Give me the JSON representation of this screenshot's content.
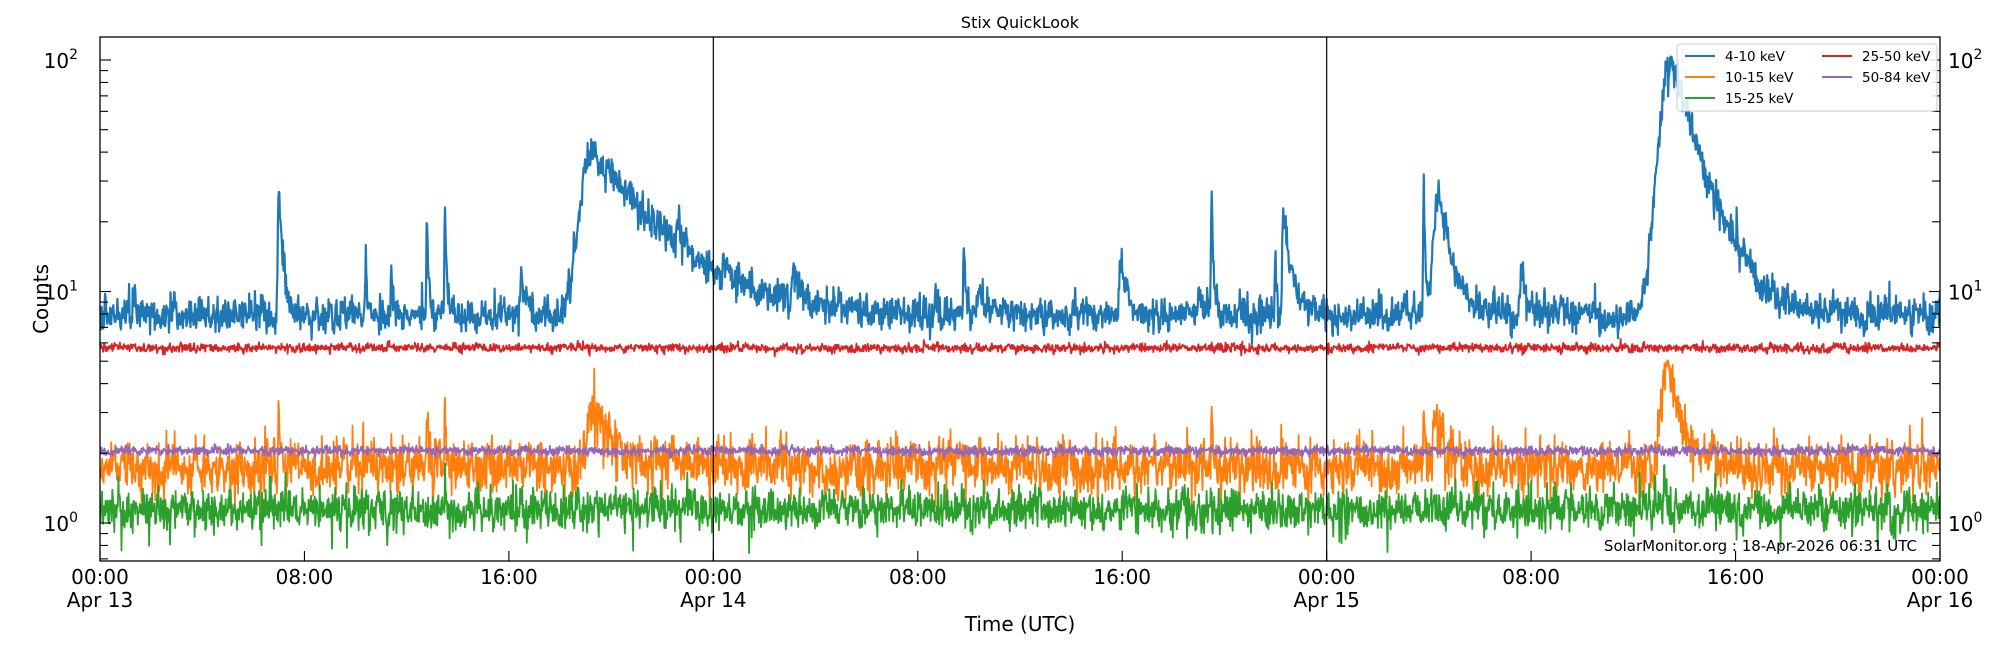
{
  "chart_data": {
    "type": "line",
    "title": "Stix QuickLook",
    "xlabel": "Time (UTC)",
    "ylabel": "Counts",
    "yscale": "log",
    "ylim": [
      0.686,
      125
    ],
    "xlim_hours": [
      0,
      72
    ],
    "grid": false,
    "legend_position": "upper right",
    "annotation": "SolarMonitor.org : 18-Apr-2026 06:31 UTC",
    "x_ticks": [
      {
        "hour": 0,
        "time": "00:00",
        "date": "Apr 13"
      },
      {
        "hour": 8,
        "time": "08:00",
        "date": ""
      },
      {
        "hour": 16,
        "time": "16:00",
        "date": ""
      },
      {
        "hour": 24,
        "time": "00:00",
        "date": "Apr 14"
      },
      {
        "hour": 32,
        "time": "08:00",
        "date": ""
      },
      {
        "hour": 40,
        "time": "16:00",
        "date": ""
      },
      {
        "hour": 48,
        "time": "00:00",
        "date": "Apr 15"
      },
      {
        "hour": 56,
        "time": "08:00",
        "date": ""
      },
      {
        "hour": 64,
        "time": "16:00",
        "date": ""
      },
      {
        "hour": 72,
        "time": "00:00",
        "date": "Apr 16"
      }
    ],
    "day_separators_hours": [
      24,
      48
    ],
    "y_ticks": [
      {
        "value": 1,
        "label": "10",
        "exp": "0"
      },
      {
        "value": 10,
        "label": "10",
        "exp": "1"
      },
      {
        "value": 100,
        "label": "10",
        "exp": "2"
      }
    ],
    "series": [
      {
        "name": "4-10 keV",
        "color": "#1f77b4",
        "baseline": 7.9,
        "noise": 0.045,
        "peaks": [
          {
            "hour": 1.3,
            "value": 9.4,
            "rise": 0.05,
            "decay": 0.1
          },
          {
            "hour": 2.8,
            "value": 9.3,
            "rise": 0.05,
            "decay": 0.1
          },
          {
            "hour": 7.0,
            "value": 26,
            "rise": 0.05,
            "decay": 0.15
          },
          {
            "hour": 10.4,
            "value": 15.5,
            "rise": 0.03,
            "decay": 0.05
          },
          {
            "hour": 11.4,
            "value": 12,
            "rise": 0.03,
            "decay": 0.06
          },
          {
            "hour": 12.8,
            "value": 22,
            "rise": 0.03,
            "decay": 0.06
          },
          {
            "hour": 13.5,
            "value": 23,
            "rise": 0.03,
            "decay": 0.05
          },
          {
            "hour": 16.5,
            "value": 12.5,
            "rise": 0.05,
            "decay": 0.15
          },
          {
            "hour": 19.3,
            "value": 40,
            "rise": 0.6,
            "decay": 2.4
          },
          {
            "hour": 22.6,
            "value": 12.5,
            "rise": 0.05,
            "decay": 0.2
          },
          {
            "hour": 24.4,
            "value": 10.5,
            "rise": 0.05,
            "decay": 0.3
          },
          {
            "hour": 27.1,
            "value": 10.8,
            "rise": 0.05,
            "decay": 0.4
          },
          {
            "hour": 32.7,
            "value": 10.5,
            "rise": 0.03,
            "decay": 0.05
          },
          {
            "hour": 33.8,
            "value": 17,
            "rise": 0.03,
            "decay": 0.06
          },
          {
            "hour": 34.4,
            "value": 10.2,
            "rise": 0.1,
            "decay": 0.3
          },
          {
            "hour": 39.9,
            "value": 12.5,
            "rise": 0.05,
            "decay": 0.3
          },
          {
            "hour": 43.0,
            "value": 10.0,
            "rise": 0.1,
            "decay": 0.2
          },
          {
            "hour": 43.5,
            "value": 26,
            "rise": 0.03,
            "decay": 0.06
          },
          {
            "hour": 46.0,
            "value": 13,
            "rise": 0.03,
            "decay": 0.05
          },
          {
            "hour": 46.3,
            "value": 22,
            "rise": 0.05,
            "decay": 0.3
          },
          {
            "hour": 51.8,
            "value": 30,
            "rise": 0.03,
            "decay": 0.05
          },
          {
            "hour": 52.4,
            "value": 27,
            "rise": 0.25,
            "decay": 0.45
          },
          {
            "hour": 55.6,
            "value": 11.5,
            "rise": 0.05,
            "decay": 0.3
          },
          {
            "hour": 61.5,
            "value": 98,
            "rise": 0.55,
            "decay": 1.05
          }
        ]
      },
      {
        "name": "10-15 keV",
        "color": "#ff7f0e",
        "baseline": 1.75,
        "noise": 0.07,
        "peaks": [
          {
            "hour": 7.0,
            "value": 3.6,
            "rise": 0.03,
            "decay": 0.05
          },
          {
            "hour": 10.3,
            "value": 3.1,
            "rise": 0.03,
            "decay": 0.04
          },
          {
            "hour": 12.8,
            "value": 3.7,
            "rise": 0.03,
            "decay": 0.04
          },
          {
            "hour": 13.5,
            "value": 3.9,
            "rise": 0.03,
            "decay": 0.04
          },
          {
            "hour": 19.2,
            "value": 3.3,
            "rise": 0.2,
            "decay": 0.8
          },
          {
            "hour": 43.5,
            "value": 3.8,
            "rise": 0.03,
            "decay": 0.04
          },
          {
            "hour": 51.8,
            "value": 3.6,
            "rise": 0.03,
            "decay": 0.04
          },
          {
            "hour": 52.3,
            "value": 2.8,
            "rise": 0.15,
            "decay": 0.3
          },
          {
            "hour": 61.3,
            "value": 4.8,
            "rise": 0.25,
            "decay": 0.5
          }
        ]
      },
      {
        "name": "15-25 keV",
        "color": "#2ca02c",
        "baseline": 1.15,
        "noise": 0.055,
        "peaks": [
          {
            "hour": 13.5,
            "value": 1.75,
            "rise": 0.02,
            "decay": 0.03
          },
          {
            "hour": 61.2,
            "value": 1.65,
            "rise": 0.05,
            "decay": 0.08
          }
        ]
      },
      {
        "name": "25-50 keV",
        "color": "#d62728",
        "baseline": 5.7,
        "noise": 0.012,
        "peaks": []
      },
      {
        "name": "50-84 keV",
        "color": "#9467bd",
        "baseline": 2.05,
        "noise": 0.012,
        "peaks": []
      }
    ]
  }
}
